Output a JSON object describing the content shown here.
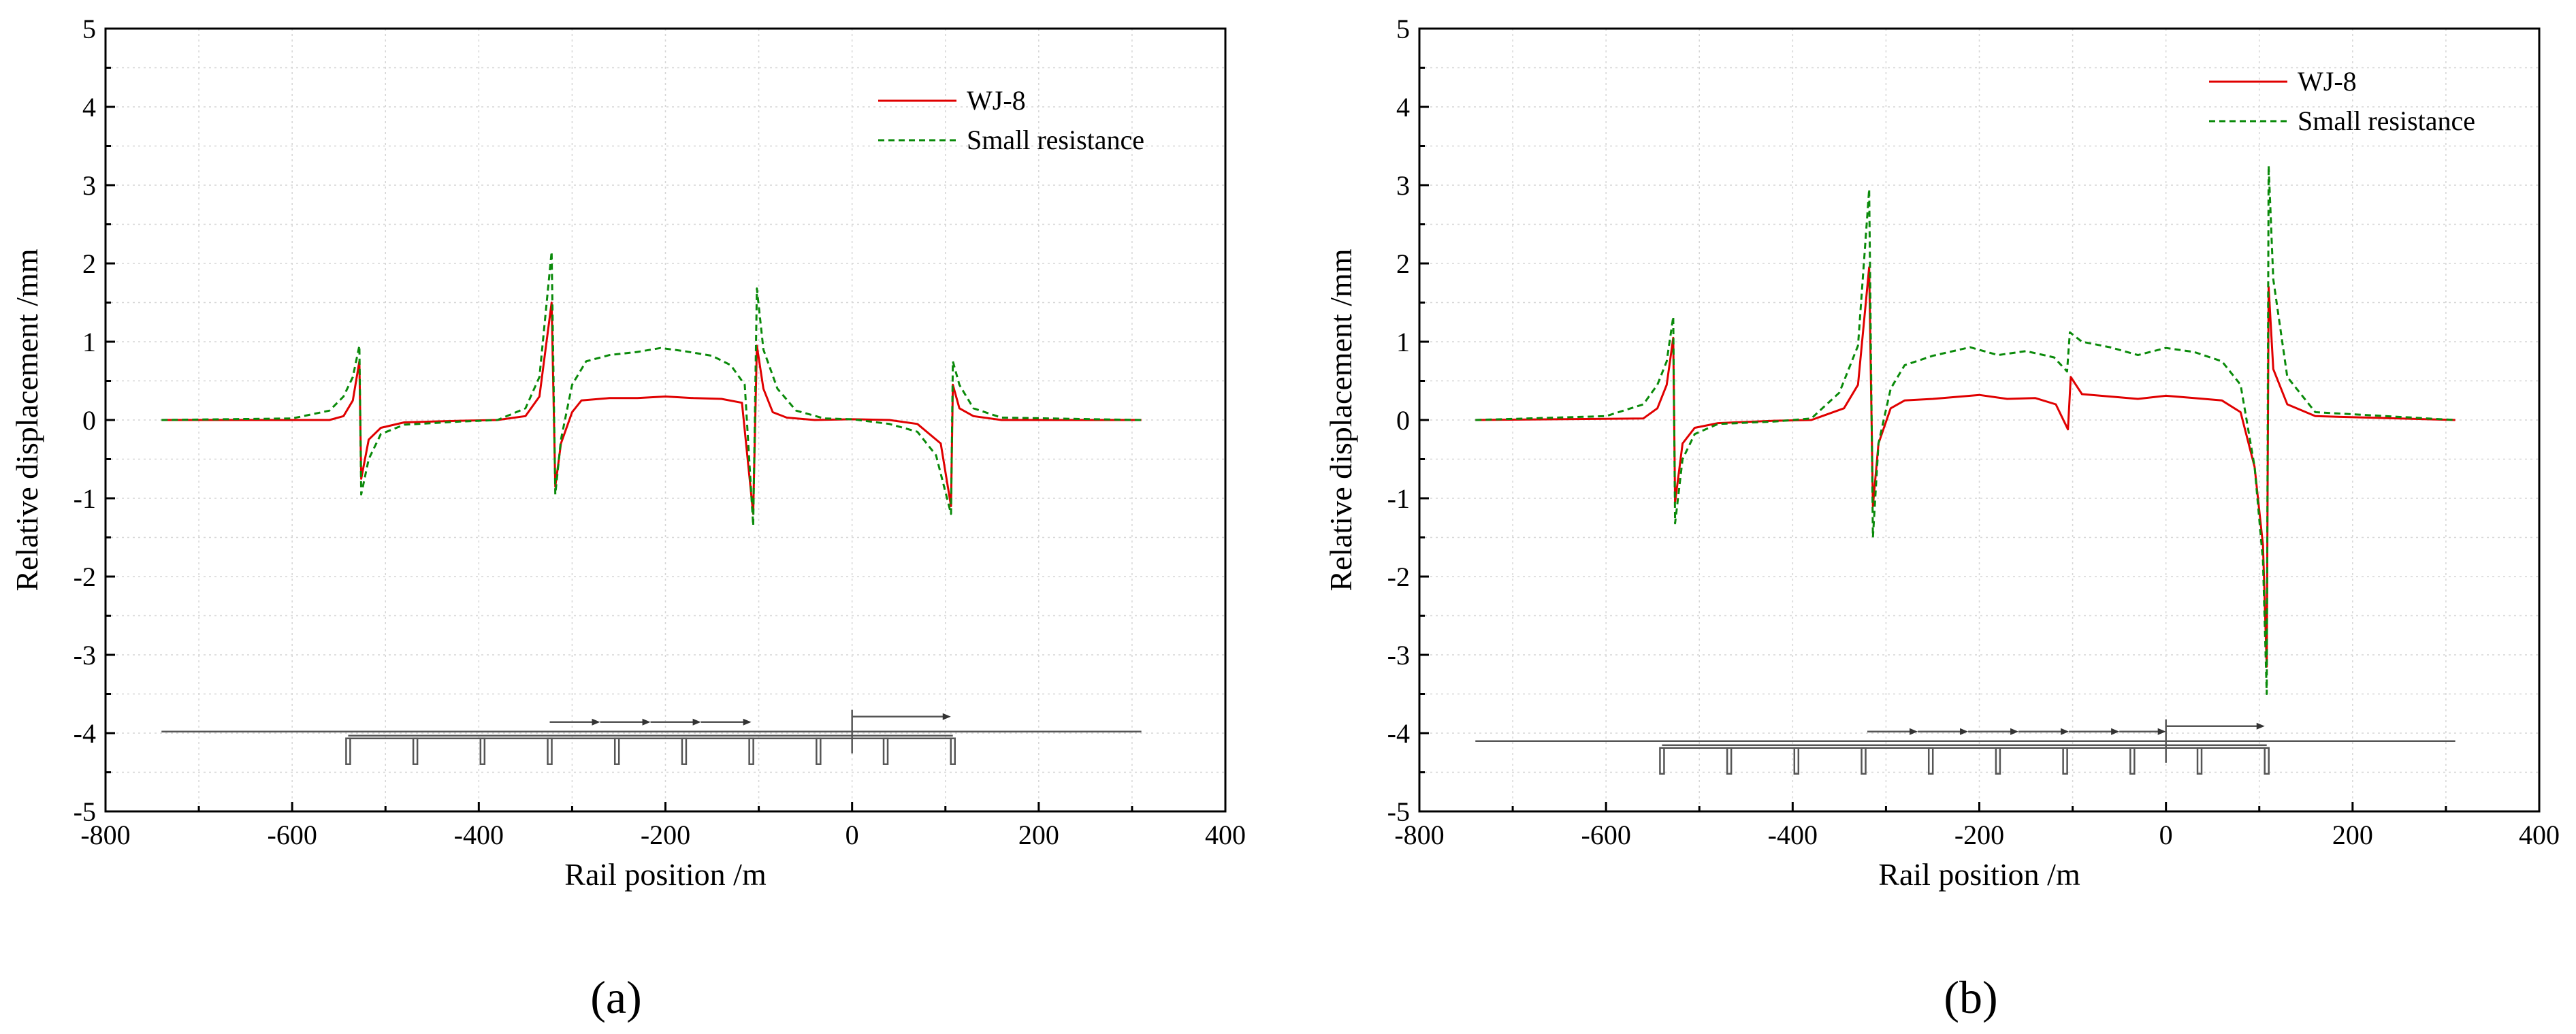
{
  "figure": {
    "panel_labels": [
      "(a)",
      "(b)"
    ]
  },
  "chart_data": [
    {
      "type": "line",
      "panel": "a",
      "title": "",
      "xlabel": "Rail position /m",
      "ylabel": "Relative displacement /mm",
      "xlim": [
        -800,
        400
      ],
      "ylim": [
        -5,
        5
      ],
      "xticks": [
        -800,
        -600,
        -400,
        -200,
        0,
        200,
        400
      ],
      "yticks": [
        -5,
        -4,
        -3,
        -2,
        -1,
        0,
        1,
        2,
        3,
        4,
        5
      ],
      "grid": true,
      "legend_position": "top-right",
      "series": [
        {
          "name": "WJ-8",
          "color": "#e00000",
          "style": "solid",
          "points": [
            [
              -740,
              0
            ],
            [
              -560,
              0
            ],
            [
              -545,
              0.05
            ],
            [
              -535,
              0.25
            ],
            [
              -528,
              0.75
            ],
            [
              -526,
              -0.75
            ],
            [
              -518,
              -0.25
            ],
            [
              -505,
              -0.1
            ],
            [
              -480,
              -0.03
            ],
            [
              -420,
              -0.01
            ],
            [
              -380,
              0
            ],
            [
              -350,
              0.05
            ],
            [
              -335,
              0.3
            ],
            [
              -322,
              1.5
            ],
            [
              -318,
              -0.85
            ],
            [
              -312,
              -0.3
            ],
            [
              -300,
              0.1
            ],
            [
              -290,
              0.25
            ],
            [
              -260,
              0.28
            ],
            [
              -230,
              0.28
            ],
            [
              -200,
              0.3
            ],
            [
              -170,
              0.28
            ],
            [
              -140,
              0.27
            ],
            [
              -118,
              0.22
            ],
            [
              -106,
              -1.2
            ],
            [
              -102,
              0.95
            ],
            [
              -95,
              0.4
            ],
            [
              -85,
              0.1
            ],
            [
              -70,
              0.03
            ],
            [
              -40,
              0
            ],
            [
              0,
              0.01
            ],
            [
              40,
              0
            ],
            [
              70,
              -0.05
            ],
            [
              95,
              -0.3
            ],
            [
              106,
              -1.1
            ],
            [
              108,
              0.45
            ],
            [
              115,
              0.15
            ],
            [
              130,
              0.05
            ],
            [
              160,
              0
            ],
            [
              310,
              0
            ]
          ]
        },
        {
          "name": "Small resistance",
          "color": "#0a8a0a",
          "style": "dashed",
          "points": [
            [
              -740,
              0
            ],
            [
              -600,
              0.02
            ],
            [
              -560,
              0.12
            ],
            [
              -545,
              0.3
            ],
            [
              -535,
              0.55
            ],
            [
              -528,
              0.95
            ],
            [
              -526,
              -0.95
            ],
            [
              -518,
              -0.5
            ],
            [
              -505,
              -0.18
            ],
            [
              -480,
              -0.06
            ],
            [
              -420,
              -0.02
            ],
            [
              -380,
              0
            ],
            [
              -350,
              0.15
            ],
            [
              -335,
              0.55
            ],
            [
              -322,
              2.15
            ],
            [
              -318,
              -0.95
            ],
            [
              -312,
              -0.25
            ],
            [
              -300,
              0.45
            ],
            [
              -285,
              0.75
            ],
            [
              -260,
              0.83
            ],
            [
              -230,
              0.87
            ],
            [
              -205,
              0.92
            ],
            [
              -180,
              0.88
            ],
            [
              -150,
              0.82
            ],
            [
              -130,
              0.7
            ],
            [
              -115,
              0.45
            ],
            [
              -106,
              -1.35
            ],
            [
              -102,
              1.68
            ],
            [
              -95,
              0.9
            ],
            [
              -80,
              0.4
            ],
            [
              -60,
              0.12
            ],
            [
              -30,
              0.02
            ],
            [
              0,
              0.01
            ],
            [
              40,
              -0.05
            ],
            [
              70,
              -0.15
            ],
            [
              90,
              -0.45
            ],
            [
              106,
              -1.2
            ],
            [
              108,
              0.75
            ],
            [
              115,
              0.45
            ],
            [
              130,
              0.15
            ],
            [
              160,
              0.03
            ],
            [
              310,
              0
            ]
          ]
        }
      ]
    },
    {
      "type": "line",
      "panel": "b",
      "title": "",
      "xlabel": "Rail position /m",
      "ylabel": "Relative displacement /mm",
      "xlim": [
        -800,
        400
      ],
      "ylim": [
        -5,
        5
      ],
      "xticks": [
        -800,
        -600,
        -400,
        -200,
        0,
        200,
        400
      ],
      "yticks": [
        -5,
        -4,
        -3,
        -2,
        -1,
        0,
        1,
        2,
        3,
        4,
        5
      ],
      "grid": true,
      "legend_position": "top-right",
      "series": [
        {
          "name": "WJ-8",
          "color": "#e00000",
          "style": "solid",
          "points": [
            [
              -740,
              0
            ],
            [
              -560,
              0.02
            ],
            [
              -545,
              0.15
            ],
            [
              -535,
              0.45
            ],
            [
              -528,
              1.05
            ],
            [
              -526,
              -1.05
            ],
            [
              -518,
              -0.3
            ],
            [
              -505,
              -0.1
            ],
            [
              -480,
              -0.04
            ],
            [
              -420,
              -0.01
            ],
            [
              -380,
              0
            ],
            [
              -345,
              0.15
            ],
            [
              -330,
              0.45
            ],
            [
              -318,
              1.95
            ],
            [
              -314,
              -1.1
            ],
            [
              -308,
              -0.3
            ],
            [
              -295,
              0.15
            ],
            [
              -280,
              0.25
            ],
            [
              -250,
              0.27
            ],
            [
              -200,
              0.32
            ],
            [
              -170,
              0.27
            ],
            [
              -140,
              0.28
            ],
            [
              -118,
              0.2
            ],
            [
              -105,
              -0.12
            ],
            [
              -102,
              0.55
            ],
            [
              -90,
              0.33
            ],
            [
              -60,
              0.3
            ],
            [
              -30,
              0.27
            ],
            [
              0,
              0.31
            ],
            [
              30,
              0.28
            ],
            [
              60,
              0.25
            ],
            [
              80,
              0.1
            ],
            [
              95,
              -0.6
            ],
            [
              104,
              -1.6
            ],
            [
              108,
              -3.15
            ],
            [
              110,
              1.7
            ],
            [
              115,
              0.65
            ],
            [
              130,
              0.2
            ],
            [
              160,
              0.05
            ],
            [
              310,
              0
            ]
          ]
        },
        {
          "name": "Small resistance",
          "color": "#0a8a0a",
          "style": "dashed",
          "points": [
            [
              -740,
              0
            ],
            [
              -600,
              0.05
            ],
            [
              -560,
              0.2
            ],
            [
              -545,
              0.45
            ],
            [
              -535,
              0.75
            ],
            [
              -528,
              1.32
            ],
            [
              -526,
              -1.32
            ],
            [
              -518,
              -0.5
            ],
            [
              -505,
              -0.18
            ],
            [
              -480,
              -0.05
            ],
            [
              -420,
              -0.02
            ],
            [
              -380,
              0.02
            ],
            [
              -350,
              0.35
            ],
            [
              -330,
              0.95
            ],
            [
              -318,
              2.95
            ],
            [
              -314,
              -1.5
            ],
            [
              -308,
              -0.3
            ],
            [
              -295,
              0.4
            ],
            [
              -280,
              0.7
            ],
            [
              -250,
              0.82
            ],
            [
              -210,
              0.93
            ],
            [
              -180,
              0.83
            ],
            [
              -150,
              0.88
            ],
            [
              -120,
              0.8
            ],
            [
              -106,
              0.62
            ],
            [
              -103,
              1.12
            ],
            [
              -90,
              1.0
            ],
            [
              -60,
              0.93
            ],
            [
              -30,
              0.83
            ],
            [
              0,
              0.92
            ],
            [
              30,
              0.87
            ],
            [
              60,
              0.75
            ],
            [
              80,
              0.45
            ],
            [
              95,
              -0.6
            ],
            [
              104,
              -1.8
            ],
            [
              108,
              -3.5
            ],
            [
              110,
              3.25
            ],
            [
              115,
              1.8
            ],
            [
              130,
              0.55
            ],
            [
              160,
              0.1
            ],
            [
              310,
              0
            ]
          ]
        }
      ]
    }
  ]
}
